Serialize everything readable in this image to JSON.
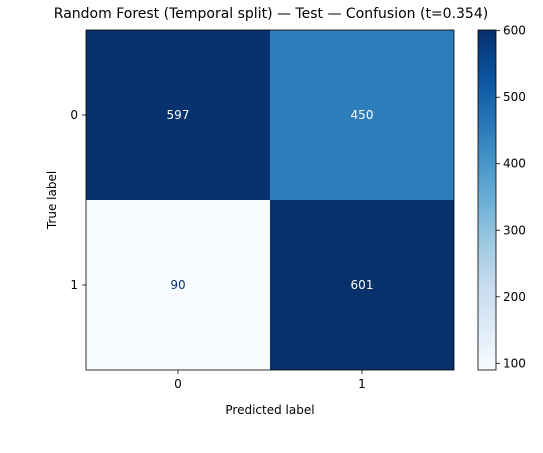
{
  "chart_data": {
    "type": "heatmap",
    "title": "Random Forest (Temporal split) — Test — Confusion (t=0.354)",
    "xlabel": "Predicted label",
    "ylabel": "True label",
    "x_categories": [
      "0",
      "1"
    ],
    "y_categories": [
      "0",
      "1"
    ],
    "matrix": [
      [
        597,
        450
      ],
      [
        90,
        601
      ]
    ],
    "colormap": "Blues",
    "colorbar": {
      "vmin": 90,
      "vmax": 601,
      "ticks": [
        100,
        200,
        300,
        400,
        500,
        600
      ]
    },
    "cell_text_colors": {
      "on_dark": "#ffffff",
      "on_light": "#08306b"
    }
  }
}
